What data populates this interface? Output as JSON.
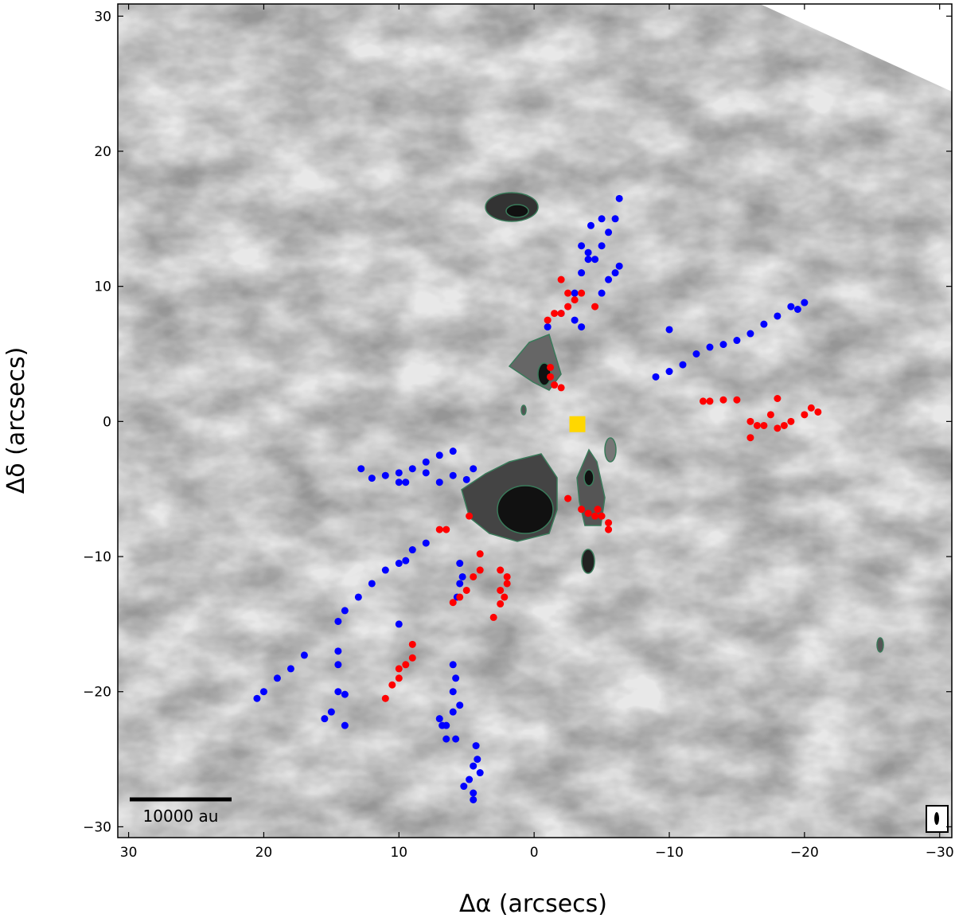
{
  "chart_data": {
    "type": "scatter",
    "xlabel": "Δα (arcsecs)",
    "ylabel": "Δδ (arcsecs)",
    "xlim": [
      30.8,
      -30.9
    ],
    "ylim": [
      -30.8,
      30.9
    ],
    "xticks": [
      30,
      20,
      10,
      0,
      {
        "value": -10,
        "label": "−10"
      },
      {
        "value": -20,
        "label": "−20"
      },
      {
        "value": -30,
        "label": "−30"
      }
    ],
    "yticks": [
      {
        "value": -30,
        "label": "−30"
      },
      {
        "value": -20,
        "label": "−20"
      },
      {
        "value": -10,
        "label": "−10"
      },
      0,
      10,
      20,
      30
    ],
    "scale_bar_label": "10000 au",
    "series": [
      {
        "color": "#0000ff",
        "marker": "circle",
        "x": [
          -1,
          -2,
          -3,
          -3.5,
          -4.5,
          -5,
          -5.5,
          -6,
          -6.3,
          -3,
          -3.5,
          -5,
          -5.5,
          -6,
          -6.3,
          -4,
          -4,
          -3.5,
          -4.2,
          -5,
          -9,
          -10,
          -11,
          -12,
          -13,
          -14,
          -15,
          -16,
          -17,
          -18,
          -19,
          -20,
          -19.5,
          -10,
          12.8,
          12,
          11,
          10,
          9,
          8,
          7,
          6,
          10,
          9.5,
          8,
          6,
          5,
          4.5,
          7,
          9,
          10,
          11,
          12,
          13,
          14,
          14.5,
          9.5,
          8,
          17,
          18,
          19,
          20,
          20.5,
          14.5,
          15,
          15.5,
          14,
          14,
          14.5,
          14.5,
          10,
          5.5,
          5.5,
          5.7,
          5.3,
          6,
          5.8,
          6,
          5.5,
          6,
          6.8,
          6.5,
          5.8,
          4.3,
          4.2,
          4.5,
          4.8,
          5.2,
          4.5,
          4.5,
          4,
          6.5,
          7
        ],
        "y": [
          7,
          8,
          9.5,
          11,
          12,
          13,
          14,
          15,
          16.5,
          7.5,
          7,
          9.5,
          10.5,
          11,
          11.5,
          12,
          12.5,
          13,
          14.5,
          15,
          3.3,
          3.7,
          4.2,
          5,
          5.5,
          5.7,
          6,
          6.5,
          7.2,
          7.8,
          8.5,
          8.8,
          8.3,
          6.8,
          -3.5,
          -4.2,
          -4,
          -3.8,
          -3.5,
          -3,
          -2.5,
          -2.2,
          -4.5,
          -4.5,
          -3.8,
          -4,
          -4.3,
          -3.5,
          -4.5,
          -9.5,
          -10.5,
          -11,
          -12,
          -13,
          -14,
          -14.8,
          -10.3,
          -9,
          -17.3,
          -18.3,
          -19,
          -20,
          -20.5,
          -20,
          -21.5,
          -22,
          -22.5,
          -20.2,
          -18,
          -17,
          -15,
          -10.5,
          -12,
          -13,
          -11.5,
          -18,
          -19,
          -20,
          -21,
          -21.5,
          -22.5,
          -23.5,
          -23.5,
          -24,
          -25,
          -25.5,
          -26.5,
          -27,
          -27.5,
          -28,
          -26,
          -22.5,
          -22
        ]
      },
      {
        "color": "#ff0000",
        "marker": "circle",
        "x": [
          -2,
          -2.5,
          -3,
          -3.5,
          -2.5,
          -2,
          -1.5,
          -1,
          -4.5,
          -1.2,
          -1.2,
          -1.5,
          -2,
          -12.5,
          -13,
          -14,
          -15,
          -16,
          -16.5,
          -16,
          -17.5,
          -18,
          -17,
          -18,
          -19,
          -20,
          -20.5,
          -21,
          -18.5,
          -2.5,
          -3.5,
          -4,
          -4.5,
          -5,
          -5.5,
          -5.5,
          -4.7,
          4.8,
          6.5,
          7,
          5,
          4.5,
          4,
          4,
          5.5,
          6,
          3,
          2.5,
          2.2,
          2.5,
          2,
          2,
          2.5,
          11,
          10.5,
          10,
          9.5,
          9,
          9,
          10
        ],
        "y": [
          10.5,
          9.5,
          9,
          9.5,
          8.5,
          8,
          8,
          7.5,
          8.5,
          4,
          3.3,
          2.7,
          2.5,
          1.5,
          1.5,
          1.6,
          1.6,
          0,
          -0.3,
          -1.2,
          0.5,
          1.7,
          -0.3,
          -0.5,
          0,
          0.5,
          1,
          0.7,
          -0.3,
          -5.7,
          -6.5,
          -6.8,
          -7,
          -7,
          -7.5,
          -8,
          -6.5,
          -7,
          -8,
          -8,
          -12.5,
          -11.5,
          -11,
          -9.8,
          -13,
          -13.4,
          -14.5,
          -13.5,
          -13,
          -12.5,
          -12,
          -11.5,
          -11,
          -20.5,
          -19.5,
          -19,
          -18,
          -17.5,
          -16.5,
          -18.3
        ]
      },
      {
        "color": "#ffd700",
        "marker": "square",
        "x": [
          -3.2
        ],
        "y": [
          -0.2
        ]
      }
    ]
  }
}
